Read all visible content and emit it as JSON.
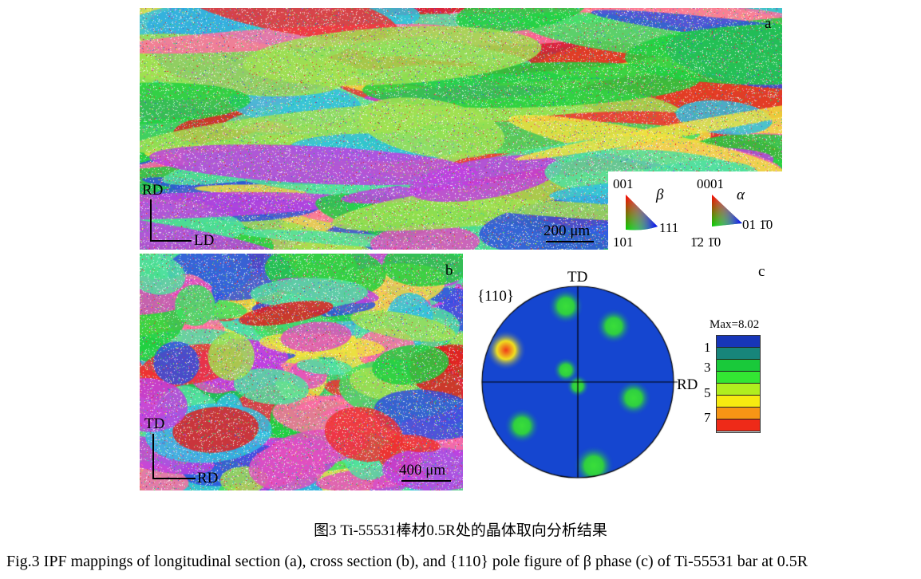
{
  "panel_a": {
    "letter": "a",
    "axis_vertical": "RD",
    "axis_horizontal": "LD",
    "scale_bar": "200 μm",
    "legend": {
      "beta": {
        "symbol": "β",
        "corners": [
          "001",
          "101",
          "111"
        ]
      },
      "alpha": {
        "symbol": "α",
        "corners": [
          "0001",
          "1̄2 1̄0",
          "01 1̄0"
        ]
      }
    }
  },
  "panel_b": {
    "letter": "b",
    "axis_vertical": "TD",
    "axis_horizontal": "RD",
    "scale_bar": "400 μm"
  },
  "panel_c": {
    "letter": "c",
    "plane": "{110}",
    "top_label": "TD",
    "right_label": "RD",
    "colorbar": {
      "max_label": "Max=8.02",
      "tick_labels": [
        "1",
        "3",
        "5",
        "7"
      ],
      "colors": [
        "#1736b8",
        "#17857a",
        "#19c93a",
        "#33e633",
        "#b0ee1f",
        "#f7ea10",
        "#f79515",
        "#ee2a18"
      ]
    },
    "pole_colors": {
      "background": "#1546d0",
      "peak_low": "#3adf3a",
      "peak_high": "#f03a1a"
    }
  },
  "caption": {
    "cn": "图3  Ti-55531棒材0.5R处的晶体取向分析结果",
    "en": "Fig.3  IPF mappings of longitudinal section (a), cross section (b), and {110} pole figure of β phase (c) of Ti-55531 bar at 0.5R"
  }
}
